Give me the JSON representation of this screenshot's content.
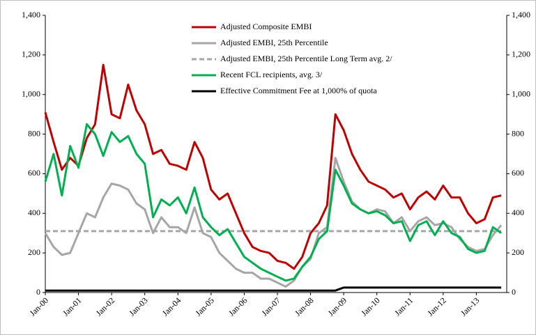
{
  "chart_data": {
    "type": "line",
    "categories": [
      "Jan-00",
      null,
      null,
      null,
      "Jan-01",
      null,
      null,
      null,
      "Jan-02",
      null,
      null,
      null,
      "Jan-03",
      null,
      null,
      null,
      "Jan-04",
      null,
      null,
      null,
      "Jan-05",
      null,
      null,
      null,
      "Jan-06",
      null,
      null,
      null,
      "Jan-07",
      null,
      null,
      null,
      "Jan-08",
      null,
      null,
      null,
      "Jan-09",
      null,
      null,
      null,
      "Jan-10",
      null,
      null,
      null,
      "Jan-11",
      null,
      null,
      null,
      "Jan-12",
      null,
      null,
      null,
      "Jan-13",
      null,
      null,
      null
    ],
    "series": [
      {
        "name": "Adjusted Composite EMBI",
        "color": "#c00000",
        "dashed": false,
        "values": [
          910,
          760,
          620,
          680,
          640,
          780,
          850,
          1150,
          900,
          880,
          1050,
          920,
          850,
          700,
          720,
          650,
          640,
          620,
          760,
          680,
          520,
          470,
          500,
          400,
          300,
          230,
          210,
          200,
          160,
          150,
          120,
          180,
          300,
          350,
          440,
          900,
          820,
          700,
          620,
          560,
          540,
          520,
          480,
          500,
          420,
          480,
          510,
          470,
          540,
          480,
          480,
          400,
          350,
          370,
          480,
          490
        ]
      },
      {
        "name": "Adjusted EMBI, 25th Percentile",
        "color": "#a6a6a6",
        "dashed": false,
        "values": [
          300,
          230,
          190,
          200,
          300,
          400,
          380,
          480,
          550,
          540,
          520,
          450,
          420,
          300,
          380,
          330,
          330,
          300,
          430,
          300,
          280,
          200,
          160,
          120,
          100,
          100,
          70,
          70,
          50,
          30,
          60,
          130,
          170,
          300,
          330,
          680,
          560,
          460,
          420,
          400,
          420,
          410,
          350,
          380,
          310,
          360,
          380,
          340,
          350,
          330,
          270,
          230,
          210,
          220,
          290,
          340
        ]
      },
      {
        "name": "Adjusted EMBI, 25th Percentile  Long Term avg. 2/",
        "color": "#a6a6a6",
        "dashed": true,
        "values": [
          310,
          310,
          310,
          310,
          310,
          310,
          310,
          310,
          310,
          310,
          310,
          310,
          310,
          310,
          310,
          310,
          310,
          310,
          310,
          310,
          310,
          310,
          310,
          310,
          310,
          310,
          310,
          310,
          310,
          310,
          310,
          310,
          310,
          310,
          310,
          310,
          310,
          310,
          310,
          310,
          310,
          310,
          310,
          310,
          310,
          310,
          310,
          310,
          310,
          310,
          310,
          310,
          310,
          310,
          310,
          310
        ]
      },
      {
        "name": "Recent FCL recipients,  avg. 3/",
        "color": "#00b050",
        "dashed": false,
        "values": [
          560,
          700,
          490,
          740,
          630,
          850,
          800,
          690,
          810,
          760,
          790,
          700,
          650,
          380,
          470,
          440,
          480,
          400,
          530,
          380,
          330,
          290,
          320,
          250,
          180,
          150,
          120,
          100,
          80,
          60,
          70,
          130,
          180,
          270,
          310,
          620,
          540,
          450,
          420,
          400,
          410,
          390,
          350,
          360,
          260,
          340,
          360,
          290,
          360,
          300,
          280,
          220,
          200,
          210,
          330,
          300
        ]
      },
      {
        "name": "Effective Commitment Fee at 1,000% of quota",
        "color": "#000000",
        "dashed": false,
        "values": [
          10,
          10,
          10,
          10,
          10,
          10,
          10,
          10,
          10,
          10,
          10,
          10,
          10,
          10,
          10,
          10,
          10,
          10,
          10,
          10,
          10,
          10,
          10,
          10,
          10,
          10,
          10,
          10,
          10,
          10,
          10,
          10,
          10,
          10,
          10,
          10,
          25,
          25,
          25,
          25,
          25,
          25,
          25,
          25,
          25,
          25,
          25,
          25,
          25,
          25,
          25,
          25,
          25,
          25,
          25,
          25
        ]
      }
    ],
    "ylim": [
      0,
      1400
    ],
    "yticks": [
      0,
      200,
      400,
      600,
      800,
      {
        "value": 1000,
        "label": "1,000"
      },
      {
        "value": 1200,
        "label": "1,200"
      },
      {
        "value": 1400,
        "label": "1,400"
      }
    ],
    "grid": false
  }
}
